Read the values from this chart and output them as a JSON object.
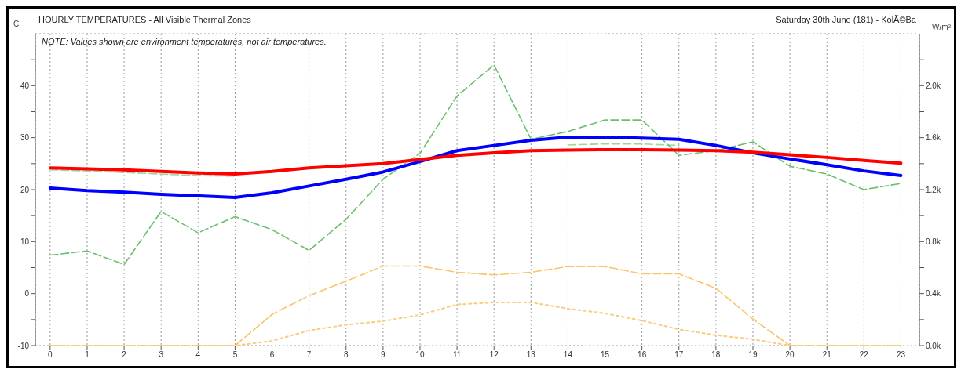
{
  "chart_data": {
    "type": "line",
    "title": "HOURLY TEMPERATURES - All Visible Thermal Zones",
    "subtitle": "Saturday 30th June (181) - KolÃ©Ba",
    "ylabel": "C",
    "y2label": "W/m²",
    "annotations": [
      "NOTE: Values shown are environment temperatures, not air temperatures."
    ],
    "x": [
      0,
      1,
      2,
      3,
      4,
      5,
      6,
      7,
      8,
      9,
      10,
      11,
      12,
      13,
      14,
      15,
      16,
      17,
      18,
      19,
      20,
      21,
      22,
      23
    ],
    "xlim": [
      -0.4,
      23.5
    ],
    "xticks": [
      0,
      1,
      2,
      3,
      4,
      5,
      6,
      7,
      8,
      9,
      10,
      11,
      12,
      13,
      14,
      15,
      16,
      17,
      18,
      19,
      20,
      21,
      22,
      23
    ],
    "ylim": [
      -10,
      50
    ],
    "yticks": [
      -10,
      {
        "value": -5,
        "label": null
      },
      0,
      {
        "value": 5,
        "label": null
      },
      10,
      {
        "value": 15,
        "label": null
      },
      20,
      {
        "value": 25,
        "label": null
      },
      30,
      {
        "value": 35,
        "label": null
      },
      40,
      {
        "value": 45,
        "label": null
      }
    ],
    "y2lim": [
      0,
      2400
    ],
    "y2ticks": [
      {
        "value": 0,
        "label": "0.0k"
      },
      {
        "value": 200,
        "label": null
      },
      {
        "value": 400,
        "label": "0.4k"
      },
      {
        "value": 600,
        "label": null
      },
      {
        "value": 800,
        "label": "0.8k"
      },
      {
        "value": 1000,
        "label": null
      },
      {
        "value": 1200,
        "label": "1.2k"
      },
      {
        "value": 1400,
        "label": null
      },
      {
        "value": 1600,
        "label": "1.6k"
      },
      {
        "value": 1800,
        "label": null
      },
      {
        "value": 2000,
        "label": "2.0k"
      },
      {
        "value": 2200,
        "label": null
      }
    ],
    "grid": true,
    "marker": "none",
    "series": [
      {
        "color": "#f9c56a",
        "line_style": "dashed",
        "axis": "y2",
        "values": [
          0,
          0,
          0,
          0,
          0,
          0,
          240,
          384,
          496,
          612,
          612,
          564,
          544,
          564,
          608,
          608,
          552,
          552,
          440,
          204,
          0,
          0,
          0,
          0
        ]
      },
      {
        "color": "#f9cd80",
        "line_style": "dotted",
        "axis": "y2",
        "values": [
          0,
          0,
          0,
          0,
          0,
          0,
          36,
          116,
          160,
          188,
          236,
          316,
          332,
          332,
          284,
          248,
          192,
          124,
          80,
          48,
          0,
          0,
          0,
          0
        ]
      },
      {
        "color": "#9fd49f",
        "line_style": "dashed",
        "axis": "y",
        "values": [
          23.8,
          23.6,
          23.3,
          23.0,
          22.7,
          22.6,
          null,
          null,
          null,
          null,
          null,
          null,
          null,
          null,
          28.6,
          28.8,
          28.8,
          28.5,
          null,
          null,
          null,
          null,
          null,
          null
        ]
      },
      {
        "color": "#6cbf6c",
        "line_style": "dashed",
        "axis": "y",
        "values": [
          7.4,
          8.2,
          5.6,
          15.8,
          11.7,
          14.8,
          12.3,
          8.3,
          14.3,
          22,
          27,
          38,
          44,
          29.7,
          31.2,
          33.4,
          33.4,
          26.6,
          27.5,
          29.2,
          24.5,
          23.0,
          20.0,
          21.2
        ]
      },
      {
        "color": "#0000ff",
        "line_style": "solid",
        "axis": "y",
        "values": [
          20.3,
          19.8,
          19.5,
          19.1,
          18.8,
          18.5,
          19.4,
          20.7,
          22.0,
          23.4,
          25.4,
          27.5,
          28.5,
          29.5,
          30.1,
          30.1,
          29.9,
          29.7,
          28.5,
          27.1,
          25.9,
          24.8,
          23.6,
          22.7
        ]
      },
      {
        "color": "#ff0000",
        "line_style": "solid",
        "axis": "y",
        "values": [
          24.2,
          24.0,
          23.8,
          23.5,
          23.2,
          23.0,
          23.5,
          24.2,
          24.6,
          25.0,
          25.8,
          26.6,
          27.1,
          27.5,
          27.6,
          27.7,
          27.7,
          27.6,
          27.5,
          27.2,
          26.7,
          26.2,
          25.6,
          25.1
        ]
      }
    ]
  }
}
